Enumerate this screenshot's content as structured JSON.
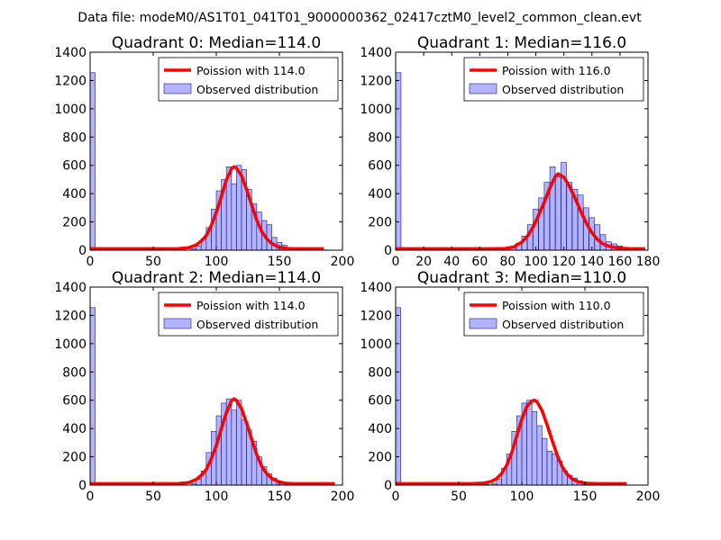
{
  "figure": {
    "suptitle": "Data file: modeM0/AS1T01_041T01_9000000362_02417cztM0_level2_common_clean.evt"
  },
  "chart_data": [
    {
      "type": "bar",
      "title": "Quadrant 0: Median=114.0",
      "xlim": [
        0,
        200
      ],
      "xticks": [
        0,
        50,
        100,
        150,
        200
      ],
      "ylim": [
        0,
        1400
      ],
      "yticks": [
        0,
        200,
        400,
        600,
        800,
        1000,
        1200,
        1400
      ],
      "legend_position": "top-right",
      "bin_width": 4.0,
      "histogram": {
        "name": "Observed distribution",
        "color": "#8080ff",
        "bins_start": [
          0,
          80,
          84,
          88,
          92,
          96,
          100,
          104,
          108,
          112,
          116,
          120,
          124,
          128,
          132,
          136,
          140,
          144,
          148,
          152,
          156,
          160,
          164,
          168,
          172,
          176,
          180,
          184
        ],
        "counts": [
          1255,
          10,
          30,
          80,
          160,
          290,
          420,
          500,
          590,
          470,
          600,
          570,
          430,
          330,
          270,
          210,
          180,
          90,
          55,
          35,
          20,
          10,
          5,
          5,
          4,
          3,
          3,
          2
        ]
      },
      "curve": {
        "name": "Poission with 114.0",
        "color": "#ff0000",
        "x": [
          0,
          60,
          70,
          78,
          84,
          88,
          92,
          96,
          100,
          104,
          108,
          112,
          114,
          116,
          120,
          124,
          128,
          132,
          136,
          140,
          144,
          148,
          152,
          156,
          160,
          170,
          185
        ],
        "y": [
          10,
          10,
          11,
          17,
          37,
          64,
          103,
          175,
          267,
          380,
          497,
          575,
          590,
          580,
          526,
          430,
          320,
          213,
          132,
          80,
          47,
          28,
          18,
          13,
          10,
          10,
          10
        ]
      }
    },
    {
      "type": "bar",
      "title": "Quadrant 1: Median=116.0",
      "xlim": [
        0,
        180
      ],
      "xticks": [
        0,
        20,
        40,
        60,
        80,
        100,
        120,
        140,
        160,
        180
      ],
      "ylim": [
        0,
        1400
      ],
      "yticks": [
        0,
        200,
        400,
        600,
        800,
        1000,
        1200,
        1400
      ],
      "legend_position": "top-right",
      "bin_width": 3.8,
      "histogram": {
        "name": "Observed distribution",
        "color": "#8080ff",
        "bins_start": [
          0,
          78,
          82,
          86,
          90,
          94,
          98,
          102,
          106,
          110,
          114,
          118,
          122,
          126,
          130,
          134,
          138,
          142,
          146,
          150,
          154,
          158,
          162,
          166,
          170
        ],
        "counts": [
          1255,
          10,
          20,
          50,
          100,
          180,
          290,
          370,
          480,
          590,
          520,
          620,
          480,
          430,
          390,
          300,
          230,
          180,
          110,
          60,
          45,
          30,
          10,
          5,
          5
        ]
      },
      "curve": {
        "name": "Poission with 116.0",
        "color": "#ff0000",
        "x": [
          0,
          70,
          78,
          84,
          90,
          94,
          98,
          102,
          106,
          110,
          114,
          116,
          120,
          124,
          128,
          132,
          136,
          140,
          144,
          148,
          152,
          158,
          166,
          178
        ],
        "y": [
          10,
          10,
          12,
          22,
          57,
          99,
          162,
          248,
          340,
          441,
          524,
          540,
          515,
          451,
          367,
          277,
          190,
          122,
          75,
          43,
          28,
          16,
          11,
          10
        ]
      }
    },
    {
      "type": "bar",
      "title": "Quadrant 2: Median=114.0",
      "xlim": [
        0,
        200
      ],
      "xticks": [
        0,
        50,
        100,
        150,
        200
      ],
      "ylim": [
        0,
        1400
      ],
      "yticks": [
        0,
        200,
        400,
        600,
        800,
        1000,
        1200,
        1400
      ],
      "legend_position": "top-right",
      "bin_width": 4.0,
      "histogram": {
        "name": "Observed distribution",
        "color": "#8080ff",
        "bins_start": [
          0,
          80,
          84,
          88,
          92,
          96,
          100,
          104,
          108,
          112,
          116,
          120,
          124,
          128,
          132,
          136,
          140,
          144,
          148,
          152,
          156,
          160,
          164,
          168,
          172,
          176,
          180,
          184,
          188
        ],
        "counts": [
          1255,
          10,
          40,
          100,
          230,
          380,
          490,
          580,
          610,
          530,
          600,
          460,
          390,
          310,
          200,
          130,
          80,
          50,
          30,
          20,
          15,
          10,
          8,
          5,
          4,
          3,
          3,
          2,
          2
        ]
      },
      "curve": {
        "name": "Poission with 114.0",
        "color": "#ff0000",
        "x": [
          0,
          60,
          70,
          78,
          84,
          88,
          92,
          96,
          100,
          104,
          108,
          112,
          114,
          116,
          120,
          124,
          128,
          132,
          136,
          140,
          144,
          148,
          152,
          156,
          160,
          170,
          194
        ],
        "y": [
          10,
          10,
          11,
          18,
          40,
          68,
          110,
          185,
          280,
          400,
          512,
          595,
          610,
          598,
          540,
          440,
          326,
          216,
          133,
          80,
          47,
          28,
          18,
          13,
          10,
          10,
          10
        ]
      }
    },
    {
      "type": "bar",
      "title": "Quadrant 3: Median=110.0",
      "xlim": [
        0,
        200
      ],
      "xticks": [
        0,
        50,
        100,
        150,
        200
      ],
      "ylim": [
        0,
        1400
      ],
      "yticks": [
        0,
        200,
        400,
        600,
        800,
        1000,
        1200,
        1400
      ],
      "legend_position": "top-right",
      "bin_width": 4.0,
      "histogram": {
        "name": "Observed distribution",
        "color": "#8080ff",
        "bins_start": [
          0,
          40,
          50,
          60,
          70,
          76,
          80,
          84,
          88,
          92,
          96,
          100,
          104,
          108,
          112,
          116,
          120,
          124,
          128,
          132,
          136,
          140,
          144,
          148,
          152,
          156,
          160,
          164,
          168,
          172,
          176,
          180
        ],
        "counts": [
          1255,
          3,
          3,
          5,
          5,
          10,
          40,
          120,
          220,
          380,
          490,
          580,
          600,
          520,
          420,
          330,
          240,
          220,
          170,
          100,
          70,
          50,
          30,
          20,
          15,
          10,
          8,
          5,
          4,
          3,
          3,
          2
        ]
      },
      "curve": {
        "name": "Poission with 110.0",
        "color": "#ff0000",
        "x": [
          0,
          60,
          70,
          76,
          80,
          84,
          88,
          92,
          96,
          100,
          104,
          108,
          110,
          112,
          116,
          120,
          124,
          128,
          132,
          136,
          140,
          144,
          148,
          152,
          160,
          183
        ],
        "y": [
          10,
          10,
          14,
          27,
          46,
          82,
          140,
          230,
          347,
          465,
          557,
          595,
          600,
          590,
          527,
          426,
          316,
          212,
          130,
          76,
          43,
          26,
          17,
          13,
          10,
          10
        ]
      }
    }
  ]
}
